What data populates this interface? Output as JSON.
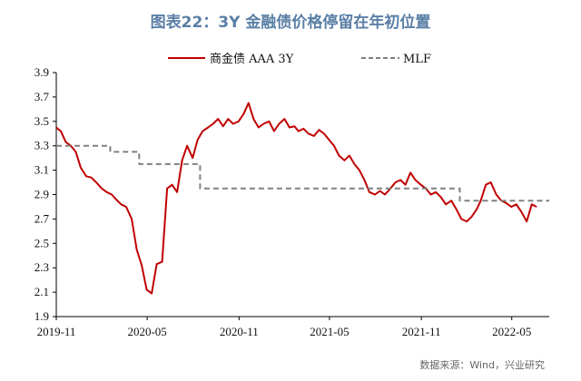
{
  "chart_data": {
    "type": "line",
    "title": "图表22：3Y 金融债价格停留在年初位置",
    "source": "数据来源：Wind，兴业研究",
    "xlabel": "",
    "ylabel": "",
    "ylim": [
      1.9,
      3.9
    ],
    "yticks": [
      "3.9",
      "3.7",
      "3.5",
      "3.3",
      "3.1",
      "2.9",
      "2.7",
      "2.5",
      "2.3",
      "2.1",
      "1.9"
    ],
    "xlim": [
      "2019-11-01",
      "2022-07-15"
    ],
    "xticks": [
      "2019-11",
      "2020-05",
      "2020-11",
      "2021-05",
      "2021-11",
      "2022-05"
    ],
    "legend_position": "top",
    "grid": false,
    "series": [
      {
        "name": "商金债 AAA 3Y",
        "color": "#c00000",
        "style": "solid",
        "points": [
          [
            "2019-11-01",
            3.45
          ],
          [
            "2019-11-10",
            3.42
          ],
          [
            "2019-11-20",
            3.33
          ],
          [
            "2019-11-30",
            3.3
          ],
          [
            "2019-12-10",
            3.25
          ],
          [
            "2019-12-20",
            3.12
          ],
          [
            "2019-12-31",
            3.05
          ],
          [
            "2020-01-10",
            3.04
          ],
          [
            "2020-01-20",
            3.0
          ],
          [
            "2020-01-31",
            2.95
          ],
          [
            "2020-02-10",
            2.92
          ],
          [
            "2020-02-20",
            2.9
          ],
          [
            "2020-02-29",
            2.86
          ],
          [
            "2020-03-10",
            2.82
          ],
          [
            "2020-03-20",
            2.8
          ],
          [
            "2020-03-31",
            2.7
          ],
          [
            "2020-04-10",
            2.45
          ],
          [
            "2020-04-20",
            2.32
          ],
          [
            "2020-04-30",
            2.12
          ],
          [
            "2020-05-10",
            2.09
          ],
          [
            "2020-05-20",
            2.33
          ],
          [
            "2020-05-31",
            2.35
          ],
          [
            "2020-06-10",
            2.95
          ],
          [
            "2020-06-20",
            2.98
          ],
          [
            "2020-06-30",
            2.92
          ],
          [
            "2020-07-10",
            3.18
          ],
          [
            "2020-07-20",
            3.3
          ],
          [
            "2020-07-31",
            3.2
          ],
          [
            "2020-08-10",
            3.35
          ],
          [
            "2020-08-20",
            3.42
          ],
          [
            "2020-08-31",
            3.45
          ],
          [
            "2020-09-10",
            3.48
          ],
          [
            "2020-09-20",
            3.52
          ],
          [
            "2020-09-30",
            3.46
          ],
          [
            "2020-10-10",
            3.52
          ],
          [
            "2020-10-20",
            3.48
          ],
          [
            "2020-10-31",
            3.5
          ],
          [
            "2020-11-10",
            3.56
          ],
          [
            "2020-11-20",
            3.65
          ],
          [
            "2020-11-30",
            3.52
          ],
          [
            "2020-12-10",
            3.45
          ],
          [
            "2020-12-20",
            3.48
          ],
          [
            "2020-12-31",
            3.5
          ],
          [
            "2021-01-10",
            3.42
          ],
          [
            "2021-01-20",
            3.48
          ],
          [
            "2021-01-31",
            3.52
          ],
          [
            "2021-02-10",
            3.45
          ],
          [
            "2021-02-20",
            3.46
          ],
          [
            "2021-02-28",
            3.42
          ],
          [
            "2021-03-10",
            3.44
          ],
          [
            "2021-03-20",
            3.4
          ],
          [
            "2021-03-31",
            3.38
          ],
          [
            "2021-04-10",
            3.43
          ],
          [
            "2021-04-20",
            3.4
          ],
          [
            "2021-04-30",
            3.35
          ],
          [
            "2021-05-10",
            3.3
          ],
          [
            "2021-05-20",
            3.22
          ],
          [
            "2021-05-31",
            3.18
          ],
          [
            "2021-06-10",
            3.22
          ],
          [
            "2021-06-20",
            3.15
          ],
          [
            "2021-06-30",
            3.1
          ],
          [
            "2021-07-10",
            3.02
          ],
          [
            "2021-07-20",
            2.92
          ],
          [
            "2021-07-31",
            2.9
          ],
          [
            "2021-08-10",
            2.93
          ],
          [
            "2021-08-20",
            2.9
          ],
          [
            "2021-08-31",
            2.95
          ],
          [
            "2021-09-10",
            3.0
          ],
          [
            "2021-09-20",
            3.02
          ],
          [
            "2021-09-30",
            2.98
          ],
          [
            "2021-10-10",
            3.08
          ],
          [
            "2021-10-20",
            3.02
          ],
          [
            "2021-10-31",
            2.98
          ],
          [
            "2021-11-10",
            2.95
          ],
          [
            "2021-11-20",
            2.9
          ],
          [
            "2021-11-30",
            2.92
          ],
          [
            "2021-12-10",
            2.88
          ],
          [
            "2021-12-20",
            2.82
          ],
          [
            "2021-12-31",
            2.85
          ],
          [
            "2022-01-10",
            2.78
          ],
          [
            "2022-01-20",
            2.7
          ],
          [
            "2022-01-31",
            2.68
          ],
          [
            "2022-02-10",
            2.72
          ],
          [
            "2022-02-20",
            2.78
          ],
          [
            "2022-02-28",
            2.85
          ],
          [
            "2022-03-10",
            2.98
          ],
          [
            "2022-03-20",
            3.0
          ],
          [
            "2022-03-31",
            2.9
          ],
          [
            "2022-04-10",
            2.85
          ],
          [
            "2022-04-20",
            2.83
          ],
          [
            "2022-04-30",
            2.8
          ],
          [
            "2022-05-10",
            2.82
          ],
          [
            "2022-05-20",
            2.76
          ],
          [
            "2022-05-31",
            2.68
          ],
          [
            "2022-06-10",
            2.82
          ],
          [
            "2022-06-20",
            2.8
          ]
        ]
      },
      {
        "name": "MLF",
        "color": "#808080",
        "style": "dashed",
        "points": [
          [
            "2019-11-01",
            3.3
          ],
          [
            "2020-02-17",
            3.3
          ],
          [
            "2020-02-17",
            3.25
          ],
          [
            "2020-04-15",
            3.25
          ],
          [
            "2020-04-15",
            3.15
          ],
          [
            "2020-08-15",
            3.15
          ],
          [
            "2020-08-15",
            2.95
          ],
          [
            "2022-01-17",
            2.95
          ],
          [
            "2022-01-17",
            2.85
          ],
          [
            "2022-07-15",
            2.85
          ]
        ]
      }
    ]
  }
}
